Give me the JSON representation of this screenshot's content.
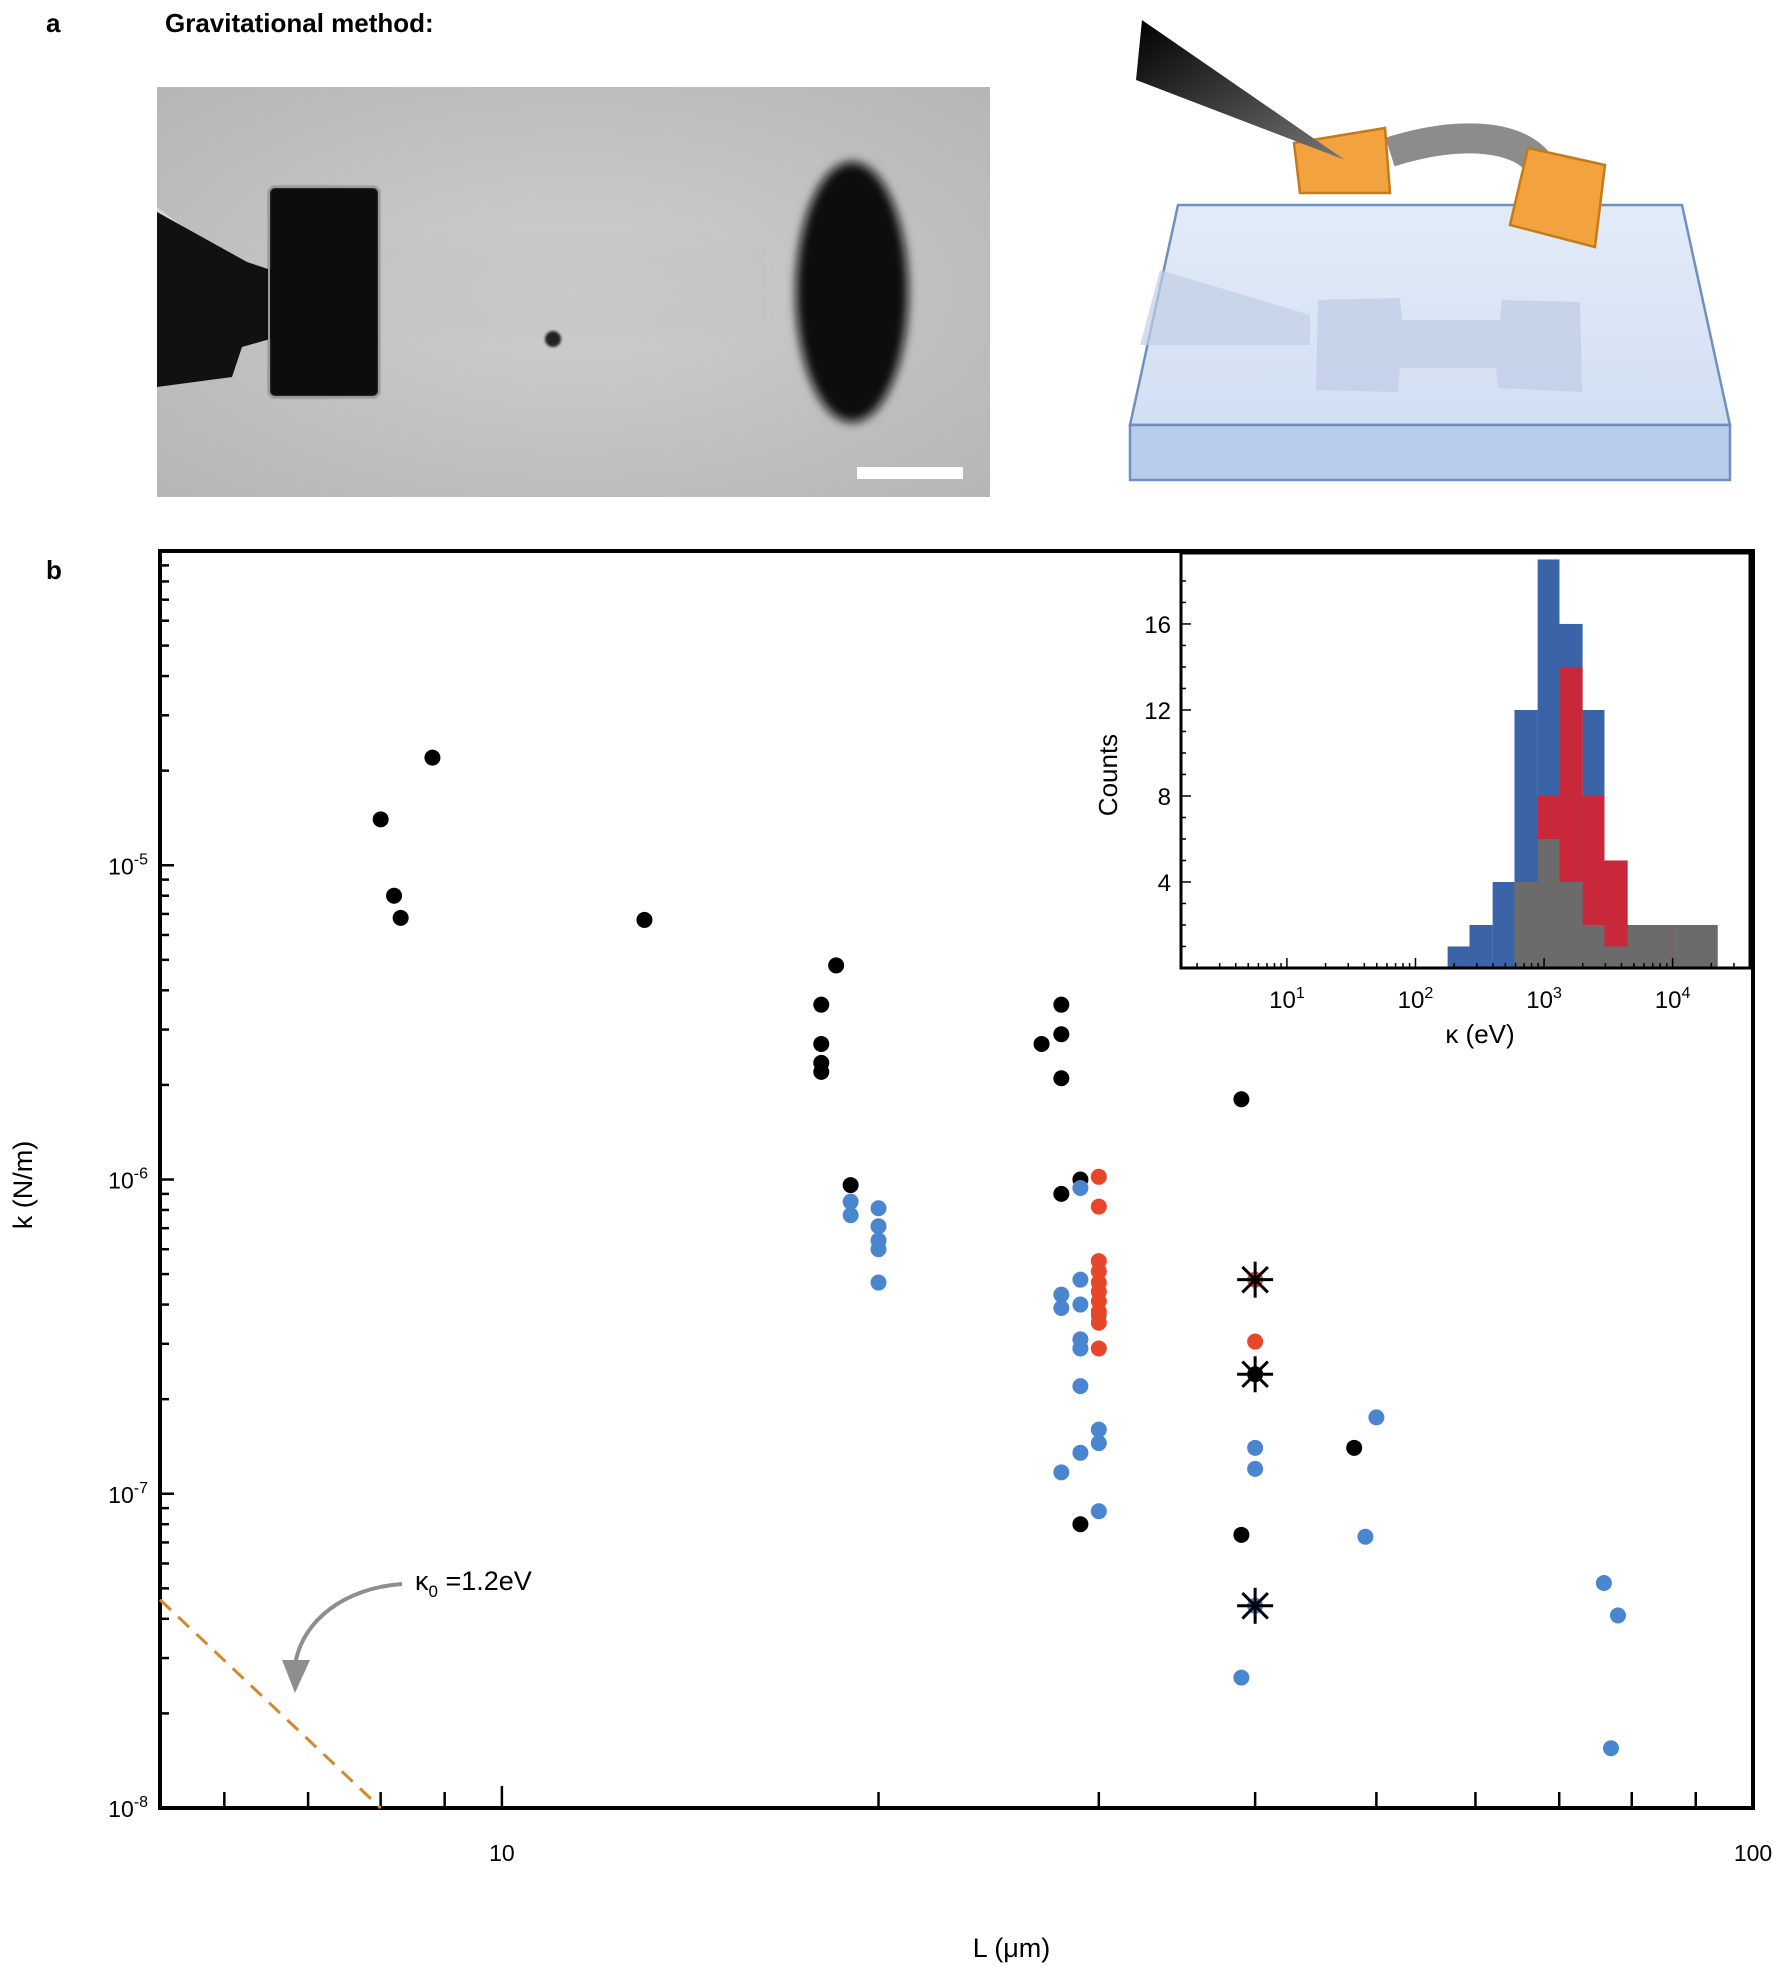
{
  "panel_a": {
    "label": "a",
    "title": "Gravitational method:"
  },
  "panel_b": {
    "label": "b"
  },
  "chart_data": [
    {
      "type": "scatter",
      "title": "",
      "xlabel": "L (μm)",
      "ylabel": "k (N/m)",
      "x_scale": "log",
      "y_scale": "log",
      "xlim": [
        5.33,
        100
      ],
      "ylim": [
        1e-08,
        0.0001
      ],
      "x_ticks": [
        {
          "value": 10,
          "label": "10"
        },
        {
          "value": 100,
          "label": "100"
        }
      ],
      "y_ticks": [
        {
          "value": 1e-08,
          "base": "10",
          "exp": "-8"
        },
        {
          "value": 1e-07,
          "base": "10",
          "exp": "-7"
        },
        {
          "value": 1e-06,
          "base": "10",
          "exp": "-6"
        },
        {
          "value": 1e-05,
          "base": "10",
          "exp": "-5"
        }
      ],
      "series": [
        {
          "color": "#000000",
          "points": [
            [
              8.0,
              1.4e-05
            ],
            [
              8.8,
              2.2e-05
            ],
            [
              8.2,
              8e-06
            ],
            [
              8.3,
              6.8e-06
            ],
            [
              13,
              6.7e-06
            ],
            [
              18.5,
              4.8e-06
            ],
            [
              18.0,
              3.6e-06
            ],
            [
              18.0,
              2.7e-06
            ],
            [
              18.0,
              2.35e-06
            ],
            [
              18.0,
              2.2e-06
            ],
            [
              19.0,
              9.6e-07
            ],
            [
              28.0,
              3.6e-06
            ],
            [
              28.0,
              2.9e-06
            ],
            [
              27.0,
              2.7e-06
            ],
            [
              28.0,
              2.1e-06
            ],
            [
              29.0,
              1e-06
            ],
            [
              28.0,
              9e-07
            ],
            [
              29.0,
              8e-08
            ],
            [
              39.0,
              1.8e-06
            ],
            [
              39.0,
              7.4e-08
            ],
            [
              48.0,
              1.4e-07
            ]
          ]
        },
        {
          "color": "#4a86cf",
          "points": [
            [
              19.0,
              8.5e-07
            ],
            [
              19.0,
              7.7e-07
            ],
            [
              20.0,
              8.1e-07
            ],
            [
              20.0,
              7.1e-07
            ],
            [
              20.0,
              6.4e-07
            ],
            [
              20.0,
              6e-07
            ],
            [
              20.0,
              4.7e-07
            ],
            [
              29.0,
              9.4e-07
            ],
            [
              28.0,
              4.3e-07
            ],
            [
              29.0,
              4.8e-07
            ],
            [
              28.0,
              3.9e-07
            ],
            [
              29.0,
              4e-07
            ],
            [
              30.0,
              3.7e-07
            ],
            [
              29.0,
              3.1e-07
            ],
            [
              29.0,
              2.9e-07
            ],
            [
              29.0,
              2.2e-07
            ],
            [
              30.0,
              1.6e-07
            ],
            [
              30.0,
              1.45e-07
            ],
            [
              29.0,
              1.35e-07
            ],
            [
              28.0,
              1.17e-07
            ],
            [
              30.0,
              8.8e-08
            ],
            [
              40.0,
              1.4e-07
            ],
            [
              40.0,
              1.2e-07
            ],
            [
              39.0,
              2.6e-08
            ],
            [
              50.0,
              1.75e-07
            ],
            [
              49.0,
              7.3e-08
            ],
            [
              76.0,
              5.2e-08
            ],
            [
              78.0,
              4.1e-08
            ],
            [
              77.0,
              1.55e-08
            ]
          ]
        },
        {
          "color": "#e8462a",
          "points": [
            [
              30.0,
              1.02e-06
            ],
            [
              30.0,
              8.2e-07
            ],
            [
              30.0,
              5.5e-07
            ],
            [
              30.0,
              5.1e-07
            ],
            [
              30.0,
              4.7e-07
            ],
            [
              30.0,
              4.4e-07
            ],
            [
              30.0,
              4.1e-07
            ],
            [
              30.0,
              3.8e-07
            ],
            [
              30.0,
              3.5e-07
            ],
            [
              30.0,
              2.9e-07
            ],
            [
              40.0,
              3.05e-07
            ]
          ]
        }
      ],
      "highlighted": [
        {
          "x": 40.0,
          "y": 4.8e-07,
          "color": "#e8462a"
        },
        {
          "x": 40.0,
          "y": 2.4e-07,
          "color": "#000000"
        },
        {
          "x": 40.0,
          "y": 4.4e-08,
          "color": "#4a86cf"
        }
      ],
      "reference_line": {
        "x": [
          5.33,
          8.0
        ],
        "y": [
          4.6e-08,
          1e-08
        ],
        "color": "#d4882e",
        "style": "dashed"
      },
      "annotation": {
        "symbol": "κ",
        "sub": "0",
        "text": " =1.2eV"
      }
    },
    {
      "type": "bar",
      "subtype": "histogram",
      "title": "",
      "xlabel": "κ (eV)",
      "ylabel": "Counts",
      "x_scale": "log",
      "xlim": [
        1.5,
        40000
      ],
      "ylim": [
        0,
        19.3
      ],
      "y_ticks": [
        4,
        8,
        12,
        16
      ],
      "x_ticks": [
        {
          "value": 10,
          "exp": "1"
        },
        {
          "value": 100,
          "exp": "2"
        },
        {
          "value": 1000,
          "exp": "3"
        },
        {
          "value": 10000,
          "exp": "4"
        }
      ],
      "bin_log_edges": [
        2.25,
        2.42,
        2.6,
        2.77,
        2.95,
        3.12,
        3.3,
        3.47,
        3.65,
        3.82,
        4.0,
        4.17,
        4.35
      ],
      "series": [
        {
          "color": "#3a63a8",
          "values": [
            1,
            2,
            4,
            12,
            19,
            16,
            12,
            5,
            2,
            2,
            2,
            2
          ]
        },
        {
          "color": "#c8283a",
          "values": [
            0,
            0,
            0,
            0,
            8,
            14,
            8,
            5,
            2,
            2,
            2,
            2
          ]
        },
        {
          "color": "#6b6b6b",
          "values": [
            0,
            0,
            0,
            4,
            6,
            4,
            2,
            1,
            2,
            2,
            2,
            2
          ]
        }
      ]
    }
  ]
}
